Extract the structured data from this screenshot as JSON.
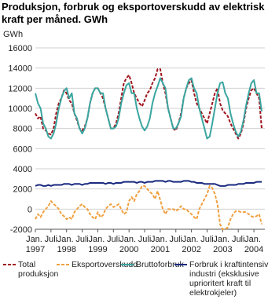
{
  "chart_data": {
    "type": "line",
    "title": "Produksjon, forbruk og eksportoverskudd av elektrisk kraft per måned. GWh",
    "y_label": "GWh",
    "categories": [
      "Jan. 1997",
      null,
      null,
      null,
      null,
      null,
      "Juli",
      null,
      null,
      null,
      null,
      null,
      "Jan. 1998",
      null,
      null,
      null,
      null,
      null,
      "Juli",
      null,
      null,
      null,
      null,
      null,
      "Jan. 1999",
      null,
      null,
      null,
      null,
      null,
      "Juli",
      null,
      null,
      null,
      null,
      null,
      "Jan. 2000",
      null,
      null,
      null,
      null,
      null,
      "Juli",
      null,
      null,
      null,
      null,
      null,
      "Jan. 2001",
      null,
      null,
      null,
      null,
      null,
      "Juli",
      null,
      null,
      null,
      null,
      null,
      "Jan. 2002",
      null,
      null,
      null,
      null,
      null,
      "Juli",
      null,
      null,
      null,
      null,
      null,
      "Jan. 2003",
      null,
      null,
      null,
      null,
      null,
      "Juli",
      null,
      null,
      null,
      null,
      null,
      "Jan. 2004",
      null,
      null,
      null
    ],
    "ylim": [
      -2000,
      16000
    ],
    "yticks": [
      -2000,
      0,
      2000,
      4000,
      6000,
      8000,
      10000,
      12000,
      14000,
      16000
    ],
    "grid": true,
    "series": [
      {
        "name": "Total produksjon",
        "color": "#a0141e",
        "dash": true,
        "values": [
          9500,
          9000,
          9200,
          8000,
          7800,
          7500,
          7400,
          8000,
          9500,
          10500,
          11000,
          11800,
          11500,
          10800,
          10500,
          9500,
          8800,
          8000,
          7800,
          8200,
          9000,
          10500,
          11500,
          12000,
          12000,
          11500,
          11000,
          10000,
          9000,
          8000,
          8000,
          8500,
          9500,
          11000,
          12500,
          13000,
          13300,
          12500,
          11500,
          11000,
          10500,
          10200,
          10800,
          11500,
          11800,
          12500,
          13000,
          13900,
          13900,
          12500,
          11500,
          10000,
          9000,
          8000,
          7800,
          8500,
          9500,
          11000,
          12000,
          12500,
          12800,
          11500,
          10500,
          10000,
          9500,
          9000,
          8500,
          9500,
          10500,
          11500,
          12000,
          10500,
          9800,
          9500,
          9200,
          8500,
          8000,
          7500,
          7000,
          7500,
          8500,
          10000,
          11000,
          11800,
          12000,
          11500,
          11000,
          8000
        ]
      },
      {
        "name": "Eksportoverskudd",
        "color": "#f0a040",
        "dash": true,
        "values": [
          -1000,
          -500,
          -800,
          -300,
          0,
          300,
          800,
          500,
          300,
          0,
          -500,
          -700,
          -1000,
          -800,
          -1000,
          -300,
          0,
          300,
          500,
          200,
          0,
          -500,
          -800,
          -1000,
          -300,
          -800,
          -600,
          0,
          300,
          500,
          200,
          300,
          500,
          0,
          -500,
          -300,
          800,
          1200,
          800,
          1500,
          1800,
          2300,
          2300,
          2000,
          1700,
          1500,
          1000,
          1800,
          900,
          0,
          -500,
          0,
          0,
          0,
          -200,
          0,
          300,
          0,
          0,
          -300,
          -500,
          -800,
          -1000,
          0,
          500,
          1000,
          1500,
          2300,
          2100,
          1500,
          500,
          -1500,
          -2000,
          -2000,
          -1800,
          -1000,
          -500,
          -200,
          -200,
          -300,
          -300,
          -300,
          -500,
          -700,
          -800,
          -700,
          -500,
          -1500
        ]
      },
      {
        "name": "Bruttoforbruk",
        "color": "#3aa6a0",
        "dash": false,
        "values": [
          11500,
          10500,
          10000,
          8500,
          8000,
          7200,
          7000,
          7500,
          8500,
          10000,
          11000,
          11700,
          12000,
          11000,
          11500,
          9500,
          9000,
          8000,
          7500,
          8000,
          9000,
          10500,
          11500,
          12000,
          12000,
          11500,
          11500,
          10000,
          9000,
          8000,
          8000,
          8200,
          9000,
          10500,
          11500,
          12300,
          12500,
          11500,
          11500,
          10000,
          9000,
          8200,
          7800,
          8200,
          9000,
          10500,
          11500,
          12200,
          13000,
          12500,
          12000,
          10000,
          9000,
          8000,
          8000,
          8500,
          9200,
          11000,
          12000,
          12800,
          13000,
          12000,
          11500,
          10000,
          9000,
          8000,
          7000,
          7200,
          8500,
          10000,
          11500,
          12500,
          12600,
          11500,
          11000,
          9500,
          8500,
          7700,
          7200,
          7700,
          8800,
          10300,
          11500,
          12500,
          12800,
          11500,
          11500,
          9700
        ]
      },
      {
        "name": "Forbruk i kraftintensiv industri (eksklusive uprioritert kraft til elektrokjeler)",
        "color": "#1a2a80",
        "dash": false,
        "values": [
          2300,
          2400,
          2400,
          2300,
          2300,
          2400,
          2300,
          2400,
          2400,
          2400,
          2400,
          2500,
          2500,
          2500,
          2400,
          2500,
          2500,
          2500,
          2400,
          2500,
          2500,
          2600,
          2600,
          2600,
          2600,
          2600,
          2600,
          2500,
          2600,
          2600,
          2500,
          2600,
          2600,
          2600,
          2700,
          2700,
          2700,
          2700,
          2700,
          2600,
          2700,
          2700,
          2600,
          2700,
          2700,
          2700,
          2800,
          2800,
          2800,
          2800,
          2700,
          2800,
          2800,
          2700,
          2700,
          2700,
          2700,
          2800,
          2800,
          2800,
          2700,
          2700,
          2600,
          2600,
          2600,
          2500,
          2500,
          2500,
          2500,
          2500,
          2400,
          2300,
          2300,
          2300,
          2400,
          2400,
          2400,
          2400,
          2500,
          2500,
          2500,
          2600,
          2600,
          2600,
          2600,
          2700,
          2700,
          2700
        ]
      }
    ]
  }
}
